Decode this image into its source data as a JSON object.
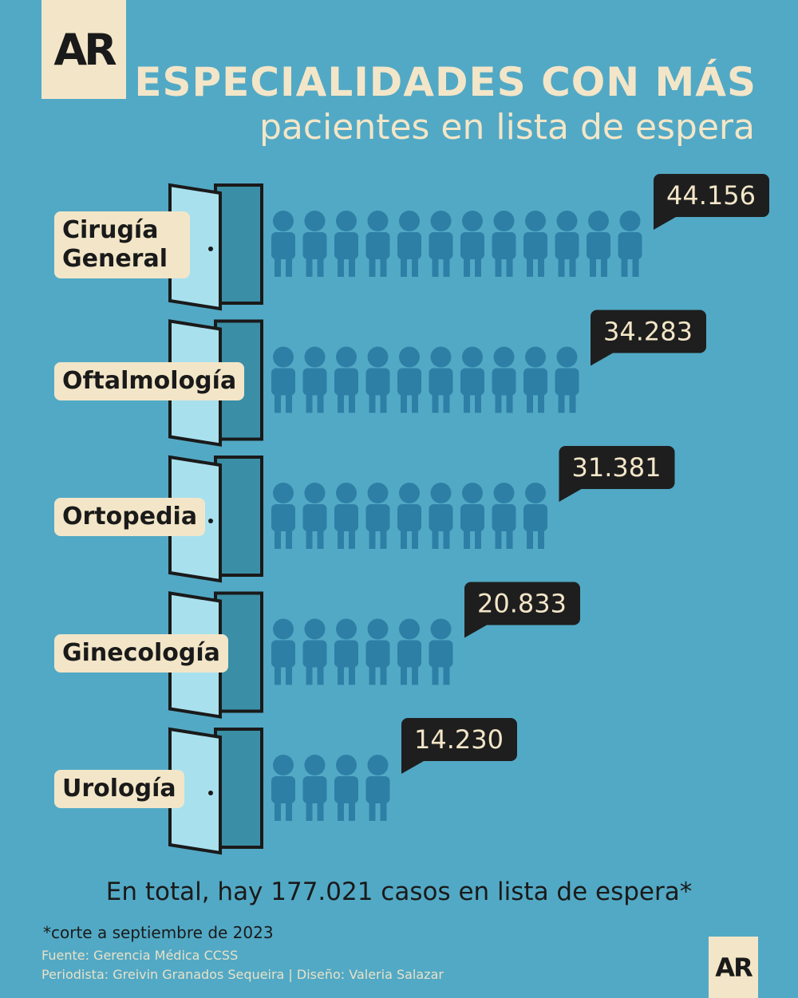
{
  "logo": "AR",
  "chart_data": {
    "type": "pictogram",
    "title": "ESPECIALIDADES CON MÁS",
    "subtitle": "pacientes en lista de espera",
    "categories": [
      "Cirugía General",
      "Oftalmología",
      "Ortopedia",
      "Ginecología",
      "Urología"
    ],
    "values": [
      44156,
      34283,
      31381,
      20833,
      14230
    ],
    "value_labels": [
      "44.156",
      "34.283",
      "31.381",
      "20.833",
      "14.230"
    ],
    "color": "#2e7fa6"
  },
  "total_note": "En total, hay 177.021 casos en lista de espera*",
  "footnote": "*corte a septiembre de 2023",
  "source": "Fuente: Gerencia Médica CCSS",
  "credits": "Periodista: Greivin Granados Sequeira | Diseño: Valeria Salazar"
}
